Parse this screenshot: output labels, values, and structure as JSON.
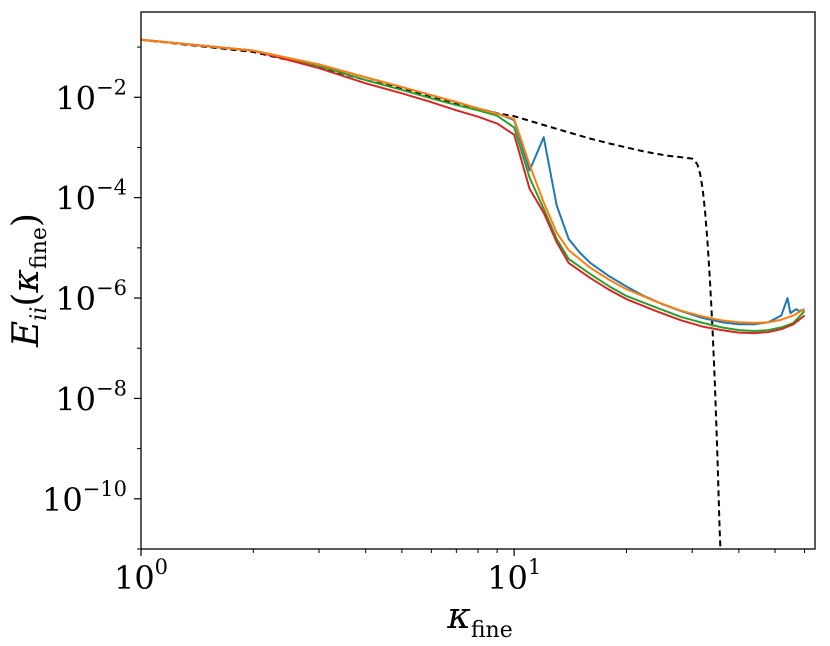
{
  "chart_data": {
    "type": "line",
    "xscale": "log",
    "yscale": "log",
    "xlim": [
      1,
      64
    ],
    "ylim": [
      1e-11,
      0.5
    ],
    "grid": false,
    "xlabel": {
      "base": "κ",
      "sub": "fine"
    },
    "ylabel": {
      "base": "E",
      "sub": "ii",
      "open": "(",
      "arg": "κ",
      "argsub": "fine",
      "close": ")"
    },
    "x_ticks": [
      {
        "value": 1,
        "base": "10",
        "exp": "0"
      },
      {
        "value": 10,
        "base": "10",
        "exp": "1"
      }
    ],
    "y_ticks": [
      {
        "value": 0.01,
        "base": "10",
        "exp": "−2"
      },
      {
        "value": 0.0001,
        "base": "10",
        "exp": "−4"
      },
      {
        "value": 1e-06,
        "base": "10",
        "exp": "−6"
      },
      {
        "value": 1e-08,
        "base": "10",
        "exp": "−8"
      },
      {
        "value": 1e-10,
        "base": "10",
        "exp": "−10"
      }
    ],
    "series": [
      {
        "color": "#000000",
        "dash": "6,4",
        "points": [
          [
            1,
            0.14
          ],
          [
            2,
            0.08
          ],
          [
            3,
            0.04
          ],
          [
            4,
            0.022
          ],
          [
            5,
            0.015
          ],
          [
            6,
            0.01
          ],
          [
            7,
            0.0075
          ],
          [
            8,
            0.006
          ],
          [
            9,
            0.0048
          ],
          [
            10,
            0.0042
          ],
          [
            12,
            0.0028
          ],
          [
            14,
            0.002
          ],
          [
            16,
            0.0015
          ],
          [
            18,
            0.0012
          ],
          [
            20,
            0.001
          ],
          [
            22,
            0.00085
          ],
          [
            24,
            0.00075
          ],
          [
            26,
            0.00068
          ],
          [
            28,
            0.00064
          ],
          [
            30,
            0.0006
          ],
          [
            30.5,
            0.00055
          ],
          [
            31,
            0.00045
          ],
          [
            31.5,
            0.0003
          ],
          [
            32,
            0.00015
          ],
          [
            32.5,
            5e-05
          ],
          [
            33,
            1.2e-05
          ],
          [
            33.5,
            2e-06
          ],
          [
            34,
            2.5e-07
          ],
          [
            34.5,
            2e-08
          ],
          [
            35,
            1e-09
          ],
          [
            35.5,
            3e-11
          ],
          [
            35.7,
            1e-11
          ]
        ]
      },
      {
        "color": "#1f77b4",
        "dash": "",
        "points": [
          [
            1,
            0.14
          ],
          [
            2,
            0.085
          ],
          [
            3,
            0.045
          ],
          [
            4,
            0.025
          ],
          [
            5,
            0.016
          ],
          [
            6,
            0.011
          ],
          [
            7,
            0.008
          ],
          [
            8,
            0.006
          ],
          [
            9,
            0.0048
          ],
          [
            10,
            0.0035
          ],
          [
            11,
            0.00035
          ],
          [
            12,
            0.0016
          ],
          [
            13,
            7e-05
          ],
          [
            14,
            1.5e-05
          ],
          [
            15,
            8e-06
          ],
          [
            16,
            5e-06
          ],
          [
            18,
            2.7e-06
          ],
          [
            20,
            1.7e-06
          ],
          [
            22,
            1.15e-06
          ],
          [
            25,
            7.5e-07
          ],
          [
            28,
            5.5e-07
          ],
          [
            32,
            4e-07
          ],
          [
            36,
            3.3e-07
          ],
          [
            40,
            3e-07
          ],
          [
            44,
            3e-07
          ],
          [
            48,
            3.3e-07
          ],
          [
            52,
            4.5e-07
          ],
          [
            54,
            1e-06
          ],
          [
            55,
            5e-07
          ],
          [
            57,
            6e-07
          ],
          [
            58,
            5.5e-07
          ],
          [
            60,
            6e-07
          ]
        ]
      },
      {
        "color": "#2ca02c",
        "dash": "",
        "points": [
          [
            1,
            0.14
          ],
          [
            2,
            0.085
          ],
          [
            3,
            0.042
          ],
          [
            4,
            0.022
          ],
          [
            5,
            0.014
          ],
          [
            6,
            0.0095
          ],
          [
            7,
            0.007
          ],
          [
            8,
            0.0055
          ],
          [
            9,
            0.0043
          ],
          [
            10,
            0.0025
          ],
          [
            11,
            0.00025
          ],
          [
            12,
            6e-05
          ],
          [
            13,
            1.5e-05
          ],
          [
            14,
            6e-06
          ],
          [
            16,
            3e-06
          ],
          [
            18,
            1.7e-06
          ],
          [
            20,
            1.1e-06
          ],
          [
            24,
            6.5e-07
          ],
          [
            28,
            4.2e-07
          ],
          [
            32,
            3.2e-07
          ],
          [
            36,
            2.6e-07
          ],
          [
            40,
            2.3e-07
          ],
          [
            44,
            2.2e-07
          ],
          [
            48,
            2.3e-07
          ],
          [
            52,
            2.6e-07
          ],
          [
            56,
            3.2e-07
          ],
          [
            60,
            5.5e-07
          ]
        ]
      },
      {
        "color": "#d62728",
        "dash": "",
        "points": [
          [
            1,
            0.14
          ],
          [
            2,
            0.085
          ],
          [
            3,
            0.038
          ],
          [
            4,
            0.019
          ],
          [
            5,
            0.012
          ],
          [
            6,
            0.008
          ],
          [
            7,
            0.0055
          ],
          [
            8,
            0.0041
          ],
          [
            9,
            0.003
          ],
          [
            10,
            0.0018
          ],
          [
            11,
            0.00015
          ],
          [
            12,
            5e-05
          ],
          [
            13,
            1.3e-05
          ],
          [
            14,
            5e-06
          ],
          [
            16,
            2.5e-06
          ],
          [
            18,
            1.45e-06
          ],
          [
            20,
            9.5e-07
          ],
          [
            24,
            5.5e-07
          ],
          [
            28,
            3.6e-07
          ],
          [
            32,
            2.7e-07
          ],
          [
            36,
            2.3e-07
          ],
          [
            40,
            2.05e-07
          ],
          [
            44,
            2e-07
          ],
          [
            48,
            2.1e-07
          ],
          [
            52,
            2.4e-07
          ],
          [
            56,
            3e-07
          ],
          [
            60,
            4.5e-07
          ]
        ]
      },
      {
        "color": "#ff7f0e",
        "dash": "",
        "points": [
          [
            1,
            0.14
          ],
          [
            2,
            0.085
          ],
          [
            3,
            0.045
          ],
          [
            4,
            0.025
          ],
          [
            5,
            0.016
          ],
          [
            6,
            0.011
          ],
          [
            7,
            0.008
          ],
          [
            8,
            0.006
          ],
          [
            9,
            0.0047
          ],
          [
            10,
            0.0037
          ],
          [
            11,
            0.00045
          ],
          [
            12,
            8e-05
          ],
          [
            13,
            2e-05
          ],
          [
            14,
            9e-06
          ],
          [
            16,
            4e-06
          ],
          [
            18,
            2.3e-06
          ],
          [
            20,
            1.5e-06
          ],
          [
            24,
            8.5e-07
          ],
          [
            28,
            5.6e-07
          ],
          [
            32,
            4.3e-07
          ],
          [
            36,
            3.6e-07
          ],
          [
            40,
            3.3e-07
          ],
          [
            44,
            3.2e-07
          ],
          [
            48,
            3.3e-07
          ],
          [
            52,
            3.7e-07
          ],
          [
            56,
            4.5e-07
          ],
          [
            60,
            6e-07
          ]
        ]
      }
    ]
  }
}
